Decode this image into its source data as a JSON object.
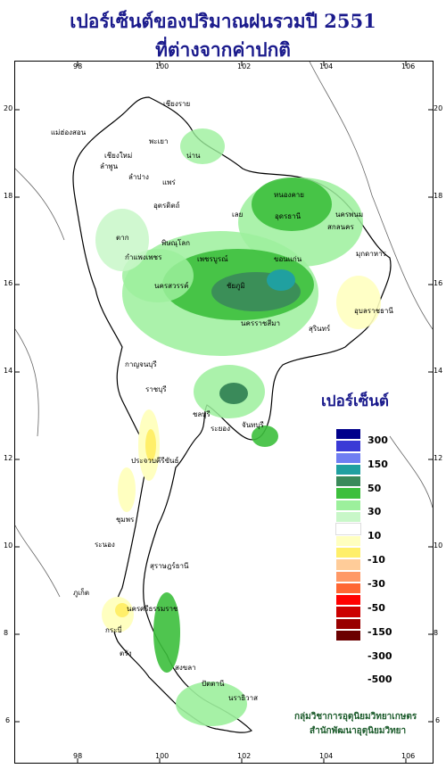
{
  "title": {
    "line1": "เปอร์เซ็นต์ของปริมาณฝนรวมปี  2551",
    "line2": "ที่ต่างจากค่าปกติ"
  },
  "axes": {
    "x_ticks_top": [
      "98",
      "100",
      "102",
      "104",
      "106"
    ],
    "x_ticks_bottom": [
      "98",
      "100",
      "102",
      "104",
      "106"
    ],
    "y_ticks_left": [
      "20",
      "18",
      "16",
      "14",
      "12",
      "10",
      "8",
      "6"
    ],
    "y_ticks_right": [
      "20",
      "18",
      "16",
      "14",
      "12",
      "10",
      "8",
      "6"
    ]
  },
  "legend": {
    "title": "เปอร์เซ็นต์",
    "labels": [
      "300",
      "150",
      "50",
      "30",
      "10",
      "-10",
      "-30",
      "-50",
      "-150",
      "-300",
      "-500"
    ],
    "colors": [
      "#00008b",
      "#3a3ad6",
      "#6f7ef2",
      "#20a0a0",
      "#3a8a5a",
      "#3cbf3c",
      "#9cf09c",
      "#c8f7c8",
      "#ffffff",
      "#ffffc0",
      "#ffef6a",
      "#ffcc99",
      "#ff9966",
      "#ff6633",
      "#ff0000",
      "#cc0000",
      "#990000",
      "#6b0000"
    ]
  },
  "provinces": [
    "เชียงราย",
    "แม่ฮ่องสอน",
    "เชียงใหม่",
    "ลำพูน",
    "ลำปาง",
    "พะเยา",
    "น่าน",
    "แพร่",
    "อุตรดิตถ์",
    "เลย",
    "หนองคาย",
    "อุดรธานี",
    "สกลนคร",
    "นครพนม",
    "มุกดาหาร",
    "ตาก",
    "พิษณุโลก",
    "กำแพงเพชร",
    "เพชรบูรณ์",
    "ขอนแก่น",
    "นครสวรรค์",
    "ชัยภูมิ",
    "นครราชสีมา",
    "อุบลราชธานี",
    "สุรินทร์",
    "ชลบุรี",
    "ระยอง",
    "จันทบุรี",
    "กาญจนบุรี",
    "ราชบุรี",
    "ประจวบคีรีขันธ์",
    "ชุมพร",
    "ระนอง",
    "สุราษฎร์ธานี",
    "นครศรีธรรมราช",
    "ภูเก็ต",
    "กระบี่",
    "ตรัง",
    "สงขลา",
    "ปัตตานี",
    "นราธิวาส"
  ],
  "credit": {
    "line1": "กลุ่มวิชาการอุตุนิยมวิทยาเกษตร",
    "line2": "สำนักพัฒนาอุตุนิยมวิทยา"
  }
}
